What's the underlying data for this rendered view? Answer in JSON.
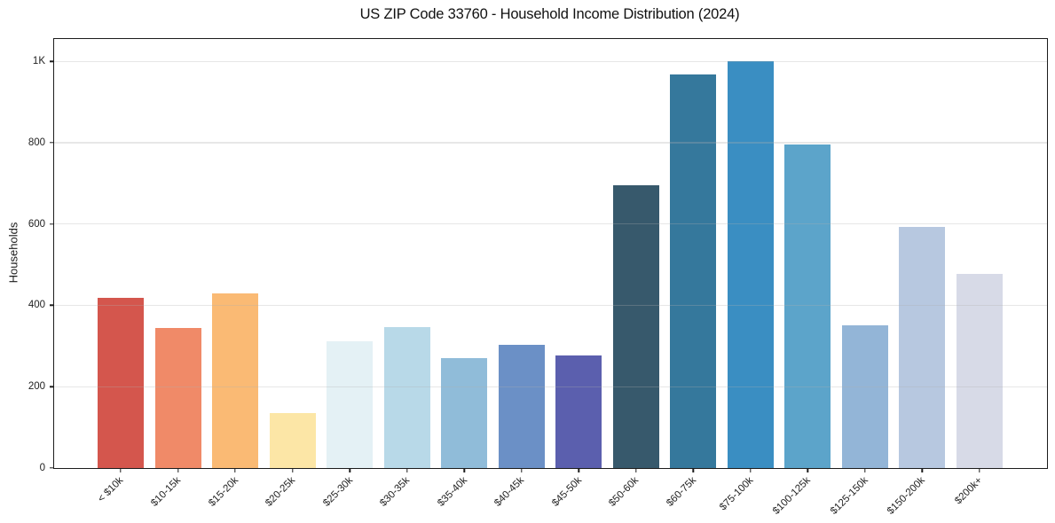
{
  "figure": {
    "title": "US ZIP Code 33760 - Household Income Distribution (2024)"
  },
  "chart_data": {
    "type": "bar",
    "title": "US ZIP Code 33760 - Household Income Distribution (2024)",
    "xlabel": "",
    "ylabel": "Households",
    "categories": [
      "< $10k",
      "$10-15k",
      "$15-20k",
      "$20-25k",
      "$25-30k",
      "$30-35k",
      "$35-40k",
      "$40-45k",
      "$45-50k",
      "$50-60k",
      "$60-75k",
      "$75-100k",
      "$100-125k",
      "$125-150k",
      "$150-200k",
      "$200k+"
    ],
    "values": [
      418,
      345,
      430,
      135,
      312,
      347,
      270,
      302,
      276,
      695,
      968,
      1000,
      795,
      352,
      593,
      478
    ],
    "bar_colors": [
      "#d4564d",
      "#f08a68",
      "#faba74",
      "#fce6a6",
      "#e4f1f5",
      "#b8d9e8",
      "#90bcd9",
      "#6b90c6",
      "#5b5fae",
      "#37596c",
      "#35789c",
      "#3a8ec2",
      "#5ca4ca",
      "#93b5d7",
      "#b7c8e0",
      "#d7dae7"
    ],
    "ylim": [
      0,
      1055
    ],
    "yticks": [
      {
        "value": 0,
        "label": "0"
      },
      {
        "value": 200,
        "label": "200"
      },
      {
        "value": 400,
        "label": "400"
      },
      {
        "value": 600,
        "label": "600"
      },
      {
        "value": 800,
        "label": "800"
      },
      {
        "value": 1000,
        "label": "1K"
      }
    ],
    "grid": "horizontal, drawn above bars, light gray",
    "legend": "none",
    "x_tick_rotation_deg": 45
  },
  "colors": {
    "background": "#ffffff",
    "spine": "#1c1c1c",
    "grid": "#b0b0b0",
    "text": "#1f1f1f"
  }
}
